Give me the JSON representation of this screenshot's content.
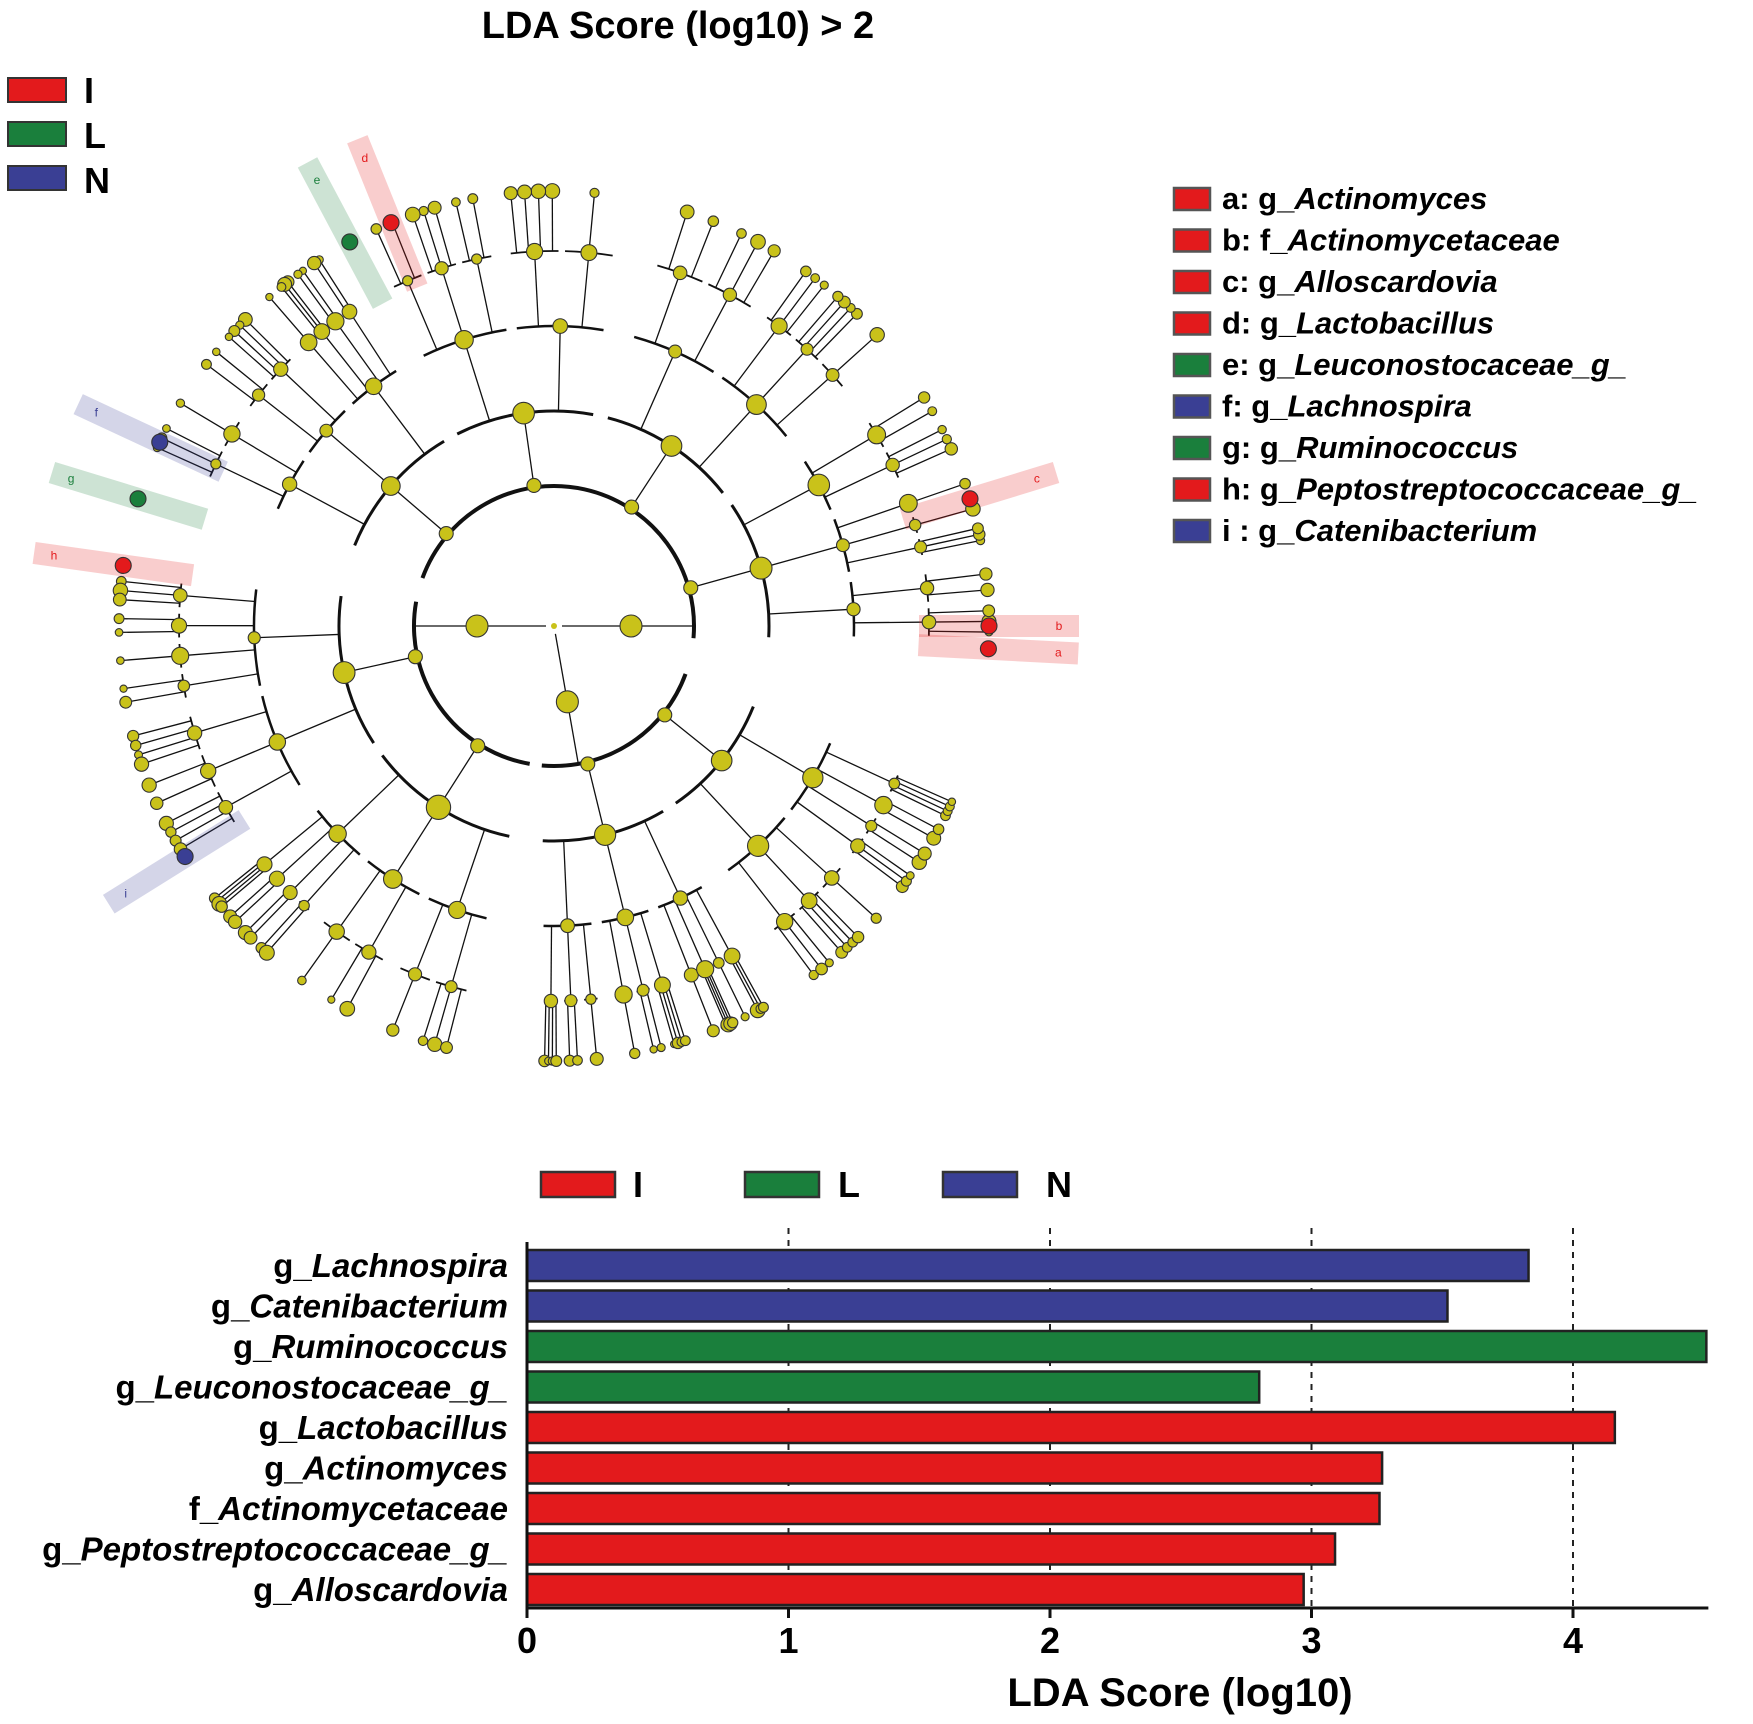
{
  "title": "LDA Score (log10) > 2",
  "groups": [
    {
      "key": "I",
      "label": "I",
      "color": "#e31a1c"
    },
    {
      "key": "L",
      "label": "L",
      "color": "#1a7f3c"
    },
    {
      "key": "N",
      "label": "N",
      "color": "#3a3f94"
    }
  ],
  "node_color": "#c9c21a",
  "cladogram": {
    "legend": [
      {
        "letter": "a:",
        "prefix": "g_",
        "name": "Actinomyces",
        "group": "I"
      },
      {
        "letter": "b:",
        "prefix": "f_",
        "name": "Actinomycetaceae",
        "group": "I"
      },
      {
        "letter": "c:",
        "prefix": "g_",
        "name": "Alloscardovia",
        "group": "I"
      },
      {
        "letter": "d:",
        "prefix": "g_",
        "name": "Lactobacillus",
        "group": "I"
      },
      {
        "letter": "e:",
        "prefix": "g_",
        "name": "Leuconostocaceae_g_",
        "group": "L"
      },
      {
        "letter": "f:",
        "prefix": "g_",
        "name": "Lachnospira",
        "group": "N"
      },
      {
        "letter": "g:",
        "prefix": "g_",
        "name": "Ruminococcus",
        "group": "L"
      },
      {
        "letter": "h:",
        "prefix": "g_",
        "name": "Peptostreptococcaceae_g_",
        "group": "I"
      },
      {
        "letter": "i :",
        "prefix": "g_",
        "name": "Catenibacterium",
        "group": "N"
      }
    ],
    "markers": [
      {
        "letter": "a",
        "group": "I"
      },
      {
        "letter": "b",
        "group": "I"
      },
      {
        "letter": "c",
        "group": "I"
      },
      {
        "letter": "d",
        "group": "I"
      },
      {
        "letter": "e",
        "group": "L"
      },
      {
        "letter": "f",
        "group": "N"
      },
      {
        "letter": "g",
        "group": "L"
      },
      {
        "letter": "h",
        "group": "I"
      },
      {
        "letter": "i",
        "group": "N"
      }
    ]
  },
  "chart_data": {
    "type": "bar",
    "orientation": "horizontal",
    "categories": [
      {
        "prefix": "g_",
        "name": "Lachnospira"
      },
      {
        "prefix": "g_",
        "name": "Catenibacterium"
      },
      {
        "prefix": "g_",
        "name": "Ruminococcus"
      },
      {
        "prefix": "g_",
        "name": "Leuconostocaceae_g_"
      },
      {
        "prefix": "g_",
        "name": "Lactobacillus"
      },
      {
        "prefix": "g_",
        "name": "Actinomyces"
      },
      {
        "prefix": "f_",
        "name": "Actinomycetaceae"
      },
      {
        "prefix": "g_",
        "name": "Peptostreptococcaceae_g_"
      },
      {
        "prefix": "g_",
        "name": "Alloscardovia"
      }
    ],
    "values": [
      3.83,
      3.52,
      4.51,
      2.8,
      4.16,
      3.27,
      3.26,
      3.09,
      2.97
    ],
    "groups": [
      "N",
      "N",
      "L",
      "L",
      "I",
      "I",
      "I",
      "I",
      "I"
    ],
    "xlabel": "LDA Score (log10)",
    "xlim": [
      0,
      4.51
    ],
    "xticks": [
      "0",
      "1",
      "2",
      "3",
      "4"
    ],
    "grid": "dotted vertical at ticks",
    "legend": [
      "I",
      "L",
      "N"
    ],
    "legend_position": "top"
  }
}
